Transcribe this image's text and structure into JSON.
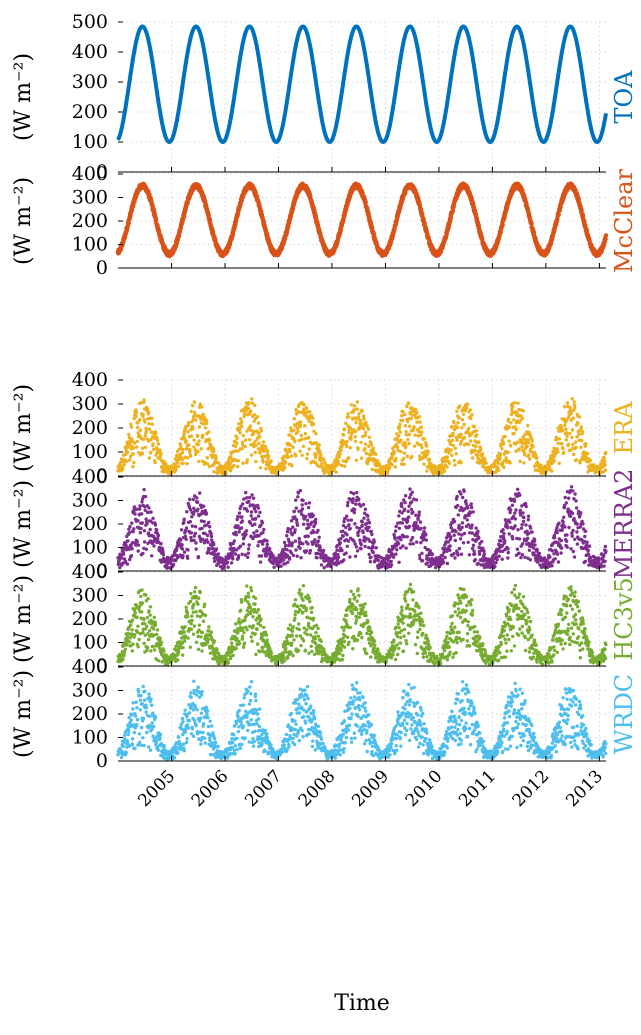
{
  "chart_data": {
    "type": "scatter",
    "xlabel": "Time",
    "ylabel": "(W m⁻²)",
    "x_range": [
      "2004-01-01",
      "2013-02-15"
    ],
    "x_ticks": [
      "2005",
      "2006",
      "2007",
      "2008",
      "2009",
      "2010",
      "2011",
      "2012",
      "2013"
    ],
    "grid": true,
    "panels": [
      {
        "name": "TOA",
        "color": "#0072BD",
        "ylim": [
          0,
          500
        ],
        "yticks": [
          0,
          100,
          200,
          300,
          400,
          500
        ],
        "marker": "line",
        "daily_cycle": {
          "min": 100,
          "max": 485,
          "peak": "mid-June",
          "start_value": 150
        },
        "scatter": 0
      },
      {
        "name": "McClear",
        "color": "#D95319",
        "ylim": [
          0,
          400
        ],
        "yticks": [
          0,
          100,
          200,
          300,
          400
        ],
        "marker": "dots-dense",
        "daily_cycle": {
          "min": 60,
          "max": 350,
          "peak": "mid-June",
          "start_value": 95
        },
        "scatter": 10
      },
      {
        "name": "ERA",
        "color": "#EDB120",
        "ylim": [
          0,
          400
        ],
        "yticks": [
          0,
          100,
          200,
          300,
          400
        ],
        "marker": "dots",
        "daily_cycle": {
          "min": 40,
          "max": 320,
          "peak": "mid-June",
          "start_value": 60
        },
        "scatter": 0.65
      },
      {
        "name": "MERRA2",
        "color": "#7E2F8E",
        "ylim": [
          0,
          400
        ],
        "yticks": [
          0,
          100,
          200,
          300,
          400
        ],
        "marker": "dots",
        "daily_cycle": {
          "min": 55,
          "max": 350,
          "peak": "mid-June",
          "start_value": 90
        },
        "scatter": 0.7
      },
      {
        "name": "HC3v5",
        "color": "#77AC30",
        "ylim": [
          0,
          400
        ],
        "yticks": [
          0,
          100,
          200,
          300,
          400
        ],
        "marker": "dots",
        "daily_cycle": {
          "min": 40,
          "max": 340,
          "peak": "mid-June",
          "start_value": 60
        },
        "scatter": 0.7
      },
      {
        "name": "WRDC",
        "color": "#4DBEEE",
        "ylim": [
          0,
          400
        ],
        "yticks": [
          0,
          100,
          200,
          300,
          400
        ],
        "marker": "dots",
        "daily_cycle": {
          "min": 40,
          "max": 330,
          "peak": "mid-June",
          "start_value": 60
        },
        "scatter": 0.7
      }
    ]
  }
}
